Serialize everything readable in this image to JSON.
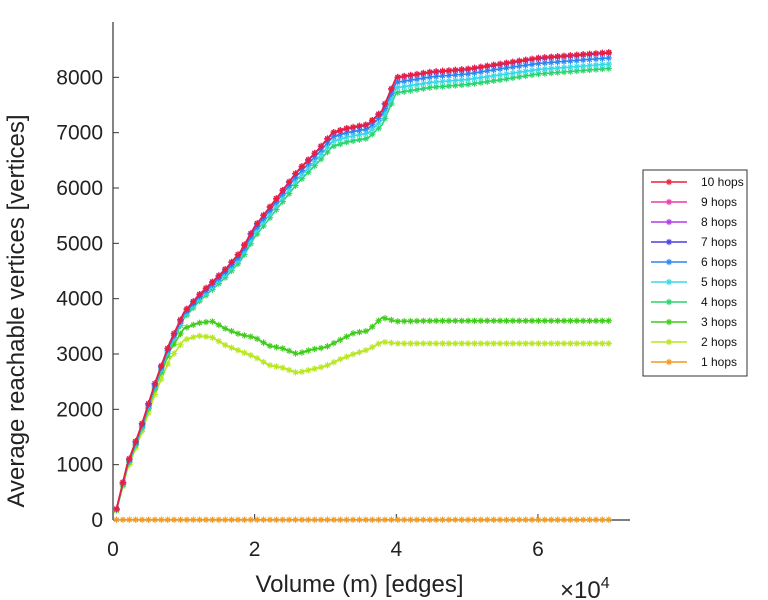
{
  "chart_data": {
    "type": "line",
    "title": "",
    "xlabel": "Volume (m) [edges]",
    "ylabel": "Average reachable vertices [vertices]",
    "x_multiplier_label": "×10",
    "x_multiplier_exponent": "4",
    "xlim": [
      0,
      7.3
    ],
    "ylim": [
      0,
      9000
    ],
    "xticks": [
      0,
      2,
      4,
      6
    ],
    "xtick_labels": [
      "0",
      "2",
      "4",
      "6"
    ],
    "yticks": [
      0,
      1000,
      2000,
      3000,
      4000,
      5000,
      6000,
      7000,
      8000
    ],
    "ytick_labels": [
      "0",
      "1000",
      "2000",
      "3000",
      "4000",
      "5000",
      "6000",
      "7000",
      "8000"
    ],
    "grid": false,
    "legend_position": "right",
    "marker": "asterisk",
    "series": [
      {
        "name": "10 hops",
        "color": "#e8203c",
        "x": [
          0.05,
          0.2,
          0.4,
          0.6,
          0.8,
          1.0,
          1.2,
          1.4,
          1.6,
          1.8,
          2.0,
          2.3,
          2.6,
          2.9,
          3.1,
          3.3,
          3.6,
          3.8,
          4.0,
          4.5,
          5.0,
          5.5,
          6.0,
          6.5,
          7.0
        ],
        "y": [
          200,
          1000,
          1700,
          2500,
          3200,
          3750,
          4050,
          4300,
          4550,
          4850,
          5300,
          5800,
          6300,
          6700,
          7000,
          7080,
          7150,
          7400,
          8000,
          8100,
          8150,
          8250,
          8350,
          8400,
          8450
        ]
      },
      {
        "name": "9 hops",
        "color": "#ec3aa8",
        "x": [
          0.05,
          0.2,
          0.4,
          0.6,
          0.8,
          1.0,
          1.2,
          1.4,
          1.6,
          1.8,
          2.0,
          2.3,
          2.6,
          2.9,
          3.1,
          3.3,
          3.6,
          3.8,
          4.0,
          4.5,
          5.0,
          5.5,
          6.0,
          6.5,
          7.0
        ],
        "y": [
          200,
          1000,
          1700,
          2500,
          3200,
          3750,
          4050,
          4300,
          4550,
          4850,
          5300,
          5800,
          6300,
          6700,
          7000,
          7080,
          7150,
          7400,
          8000,
          8100,
          8150,
          8250,
          8350,
          8400,
          8450
        ]
      },
      {
        "name": "8 hops",
        "color": "#b23ae6",
        "x": [
          0.05,
          0.2,
          0.4,
          0.6,
          0.8,
          1.0,
          1.2,
          1.4,
          1.6,
          1.8,
          2.0,
          2.3,
          2.6,
          2.9,
          3.1,
          3.3,
          3.6,
          3.8,
          4.0,
          4.5,
          5.0,
          5.5,
          6.0,
          6.5,
          7.0
        ],
        "y": [
          200,
          1000,
          1700,
          2500,
          3200,
          3750,
          4050,
          4300,
          4550,
          4850,
          5300,
          5800,
          6300,
          6700,
          7000,
          7080,
          7150,
          7400,
          8000,
          8100,
          8150,
          8250,
          8350,
          8400,
          8450
        ]
      },
      {
        "name": "7 hops",
        "color": "#4b3fe0",
        "x": [
          0.05,
          0.2,
          0.4,
          0.6,
          0.8,
          1.0,
          1.2,
          1.4,
          1.6,
          1.8,
          2.0,
          2.3,
          2.6,
          2.9,
          3.1,
          3.3,
          3.6,
          3.8,
          4.0,
          4.5,
          5.0,
          5.5,
          6.0,
          6.5,
          7.0
        ],
        "y": [
          200,
          990,
          1690,
          2490,
          3190,
          3740,
          4040,
          4290,
          4540,
          4840,
          5290,
          5790,
          6290,
          6690,
          6990,
          7070,
          7140,
          7390,
          7990,
          8090,
          8140,
          8240,
          8340,
          8390,
          8440
        ]
      },
      {
        "name": "6 hops",
        "color": "#2a86f0",
        "x": [
          0.05,
          0.2,
          0.4,
          0.6,
          0.8,
          1.0,
          1.2,
          1.4,
          1.6,
          1.8,
          2.0,
          2.3,
          2.6,
          2.9,
          3.1,
          3.3,
          3.6,
          3.8,
          4.0,
          4.5,
          5.0,
          5.5,
          6.0,
          6.5,
          7.0
        ],
        "y": [
          195,
          975,
          1670,
          2470,
          3160,
          3710,
          4010,
          4250,
          4500,
          4790,
          5240,
          5740,
          6230,
          6630,
          6920,
          7000,
          7070,
          7320,
          7910,
          8010,
          8060,
          8160,
          8250,
          8300,
          8350
        ]
      },
      {
        "name": "5 hops",
        "color": "#38d8ea",
        "x": [
          0.05,
          0.2,
          0.4,
          0.6,
          0.8,
          1.0,
          1.2,
          1.4,
          1.6,
          1.8,
          2.0,
          2.3,
          2.6,
          2.9,
          3.1,
          3.3,
          3.6,
          3.8,
          4.0,
          4.5,
          5.0,
          5.5,
          6.0,
          6.5,
          7.0
        ],
        "y": [
          190,
          960,
          1650,
          2450,
          3130,
          3680,
          3970,
          4210,
          4450,
          4740,
          5180,
          5670,
          6160,
          6550,
          6840,
          6920,
          6990,
          7230,
          7810,
          7910,
          7960,
          8050,
          8140,
          8190,
          8240
        ]
      },
      {
        "name": "4 hops",
        "color": "#2ad46e",
        "x": [
          0.05,
          0.2,
          0.4,
          0.6,
          0.8,
          1.0,
          1.2,
          1.4,
          1.6,
          1.8,
          2.0,
          2.3,
          2.6,
          2.9,
          3.1,
          3.3,
          3.6,
          3.8,
          4.0,
          4.5,
          5.0,
          5.5,
          6.0,
          6.5,
          7.0
        ],
        "y": [
          185,
          950,
          1630,
          2420,
          3100,
          3640,
          3930,
          4160,
          4400,
          4680,
          5110,
          5600,
          6080,
          6470,
          6750,
          6830,
          6900,
          7140,
          7720,
          7820,
          7870,
          7960,
          8060,
          8110,
          8160
        ]
      },
      {
        "name": "3 hops",
        "color": "#3ecc1a",
        "x": [
          0.05,
          0.2,
          0.4,
          0.6,
          0.8,
          1.0,
          1.2,
          1.4,
          1.6,
          1.8,
          2.0,
          2.2,
          2.4,
          2.6,
          2.8,
          3.0,
          3.2,
          3.4,
          3.6,
          3.8,
          4.0,
          4.5,
          5.0,
          5.5,
          6.0,
          6.5,
          7.0
        ],
        "y": [
          180,
          940,
          1620,
          2400,
          3050,
          3460,
          3560,
          3590,
          3450,
          3350,
          3300,
          3150,
          3100,
          3000,
          3080,
          3120,
          3250,
          3380,
          3420,
          3660,
          3590,
          3600,
          3600,
          3600,
          3600,
          3600,
          3600
        ]
      },
      {
        "name": "2 hops",
        "color": "#b8e620",
        "x": [
          0.05,
          0.2,
          0.4,
          0.6,
          0.8,
          1.0,
          1.2,
          1.4,
          1.6,
          1.8,
          2.0,
          2.2,
          2.4,
          2.6,
          2.8,
          3.0,
          3.2,
          3.4,
          3.6,
          3.8,
          4.0,
          4.5,
          5.0,
          5.5,
          6.0,
          6.5,
          7.0
        ],
        "y": [
          170,
          900,
          1560,
          2300,
          2900,
          3250,
          3330,
          3300,
          3150,
          3050,
          2950,
          2800,
          2750,
          2660,
          2720,
          2780,
          2900,
          3000,
          3080,
          3220,
          3190,
          3190,
          3190,
          3190,
          3190,
          3190,
          3190
        ]
      },
      {
        "name": "1 hops",
        "color": "#f39a1e",
        "x": [
          0.05,
          1.0,
          2.0,
          3.0,
          4.0,
          5.0,
          6.0,
          7.0
        ],
        "y": [
          5,
          5,
          5,
          5,
          5,
          5,
          5,
          5
        ]
      }
    ]
  }
}
